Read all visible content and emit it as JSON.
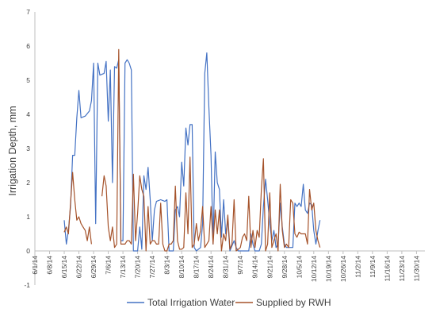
{
  "chart_data": {
    "type": "line",
    "title": "",
    "xlabel": "",
    "ylabel": "Irrigation Depth, mm",
    "ylim": [
      -1,
      7
    ],
    "yticks": [
      "-1",
      "0",
      "1",
      "2",
      "3",
      "4",
      "5",
      "6",
      "7"
    ],
    "x_range": [
      "2014-06-01",
      "2014-12-04"
    ],
    "x_ticks": [
      "6/1/14",
      "6/8/14",
      "6/15/14",
      "6/22/14",
      "6/29/14",
      "7/6/14",
      "7/13/14",
      "7/20/14",
      "7/27/14",
      "8/3/14",
      "8/10/14",
      "8/17/14",
      "8/24/14",
      "8/31/14",
      "9/7/14",
      "9/14/14",
      "9/21/14",
      "9/28/14",
      "10/5/14",
      "10/12/14",
      "10/19/14",
      "10/26/14",
      "11/2/14",
      "11/9/14",
      "11/16/14",
      "11/23/14",
      "11/30/14"
    ],
    "grid": false,
    "legend_position": "bottom",
    "series": [
      {
        "name": "Total Irrigation Water",
        "color": "#4472c4",
        "points": [
          [
            "2014-06-15",
            0.9
          ],
          [
            "2014-06-16",
            0.2
          ],
          [
            "2014-06-17",
            0.6
          ],
          [
            "2014-06-18",
            1.3
          ],
          [
            "2014-06-19",
            2.8
          ],
          [
            "2014-06-20",
            2.8
          ],
          [
            "2014-06-21",
            3.9
          ],
          [
            "2014-06-22",
            4.7
          ],
          [
            "2014-06-23",
            3.9
          ],
          [
            "2014-06-25",
            3.95
          ],
          [
            "2014-06-27",
            4.1
          ],
          [
            "2014-06-28",
            4.4
          ],
          [
            "2014-06-29",
            5.5
          ],
          [
            "2014-06-30",
            0.8
          ],
          [
            "2014-07-01",
            5.5
          ],
          [
            "2014-07-02",
            5.15
          ],
          [
            "2014-07-04",
            5.2
          ],
          [
            "2014-07-05",
            5.55
          ],
          [
            "2014-07-06",
            3.8
          ],
          [
            "2014-07-07",
            5.3
          ],
          [
            "2014-07-08",
            2.0
          ],
          [
            "2014-07-09",
            5.4
          ],
          [
            "2014-07-10",
            5.35
          ],
          [
            "2014-07-11",
            5.6
          ],
          [
            "2014-07-12",
            0.3
          ],
          [
            "2014-07-13",
            0.3
          ],
          [
            "2014-07-14",
            5.5
          ],
          [
            "2014-07-15",
            5.6
          ],
          [
            "2014-07-16",
            5.5
          ],
          [
            "2014-07-17",
            5.3
          ],
          [
            "2014-07-18",
            0.0
          ],
          [
            "2014-07-20",
            0.0
          ],
          [
            "2014-07-21",
            0.7
          ],
          [
            "2014-07-22",
            0.05
          ],
          [
            "2014-07-23",
            2.2
          ],
          [
            "2014-07-24",
            1.8
          ],
          [
            "2014-07-25",
            2.45
          ],
          [
            "2014-07-26",
            1.5
          ],
          [
            "2014-07-27",
            0.3
          ],
          [
            "2014-07-28",
            1.2
          ],
          [
            "2014-07-29",
            1.45
          ],
          [
            "2014-07-31",
            1.5
          ],
          [
            "2014-08-02",
            1.45
          ],
          [
            "2014-08-03",
            1.5
          ],
          [
            "2014-08-04",
            0.0
          ],
          [
            "2014-08-06",
            0.0
          ],
          [
            "2014-08-07",
            1.2
          ],
          [
            "2014-08-08",
            1.3
          ],
          [
            "2014-08-09",
            1.0
          ],
          [
            "2014-08-10",
            2.6
          ],
          [
            "2014-08-11",
            1.9
          ],
          [
            "2014-08-12",
            3.6
          ],
          [
            "2014-08-13",
            3.1
          ],
          [
            "2014-08-14",
            3.7
          ],
          [
            "2014-08-15",
            3.7
          ],
          [
            "2014-08-16",
            0.1
          ],
          [
            "2014-08-17",
            0.0
          ],
          [
            "2014-08-19",
            0.1
          ],
          [
            "2014-08-20",
            0.8
          ],
          [
            "2014-08-21",
            5.2
          ],
          [
            "2014-08-22",
            5.8
          ],
          [
            "2014-08-23",
            4.2
          ],
          [
            "2014-08-24",
            2.8
          ],
          [
            "2014-08-25",
            0.2
          ],
          [
            "2014-08-26",
            2.9
          ],
          [
            "2014-08-27",
            2.0
          ],
          [
            "2014-08-28",
            1.8
          ],
          [
            "2014-08-29",
            0.4
          ],
          [
            "2014-08-30",
            1.5
          ],
          [
            "2014-08-31",
            0.5
          ],
          [
            "2014-09-01",
            0.9
          ],
          [
            "2014-09-02",
            0.0
          ],
          [
            "2014-09-04",
            0.3
          ],
          [
            "2014-09-05",
            0.1
          ],
          [
            "2014-09-06",
            0.0
          ],
          [
            "2014-09-08",
            0.0
          ],
          [
            "2014-09-10",
            0.0
          ],
          [
            "2014-09-11",
            0.0
          ],
          [
            "2014-09-12",
            0.5
          ],
          [
            "2014-09-13",
            0.2
          ],
          [
            "2014-09-14",
            0.0
          ],
          [
            "2014-09-16",
            0.0
          ],
          [
            "2014-09-17",
            0.2
          ],
          [
            "2014-09-18",
            1.3
          ],
          [
            "2014-09-19",
            2.1
          ],
          [
            "2014-09-20",
            1.5
          ],
          [
            "2014-09-21",
            0.8
          ],
          [
            "2014-09-22",
            0.3
          ],
          [
            "2014-09-23",
            0.6
          ],
          [
            "2014-09-24",
            0.1
          ],
          [
            "2014-09-25",
            0.2
          ],
          [
            "2014-09-26",
            1.4
          ],
          [
            "2014-09-27",
            0.7
          ],
          [
            "2014-09-28",
            0.2
          ],
          [
            "2014-09-29",
            0.1
          ],
          [
            "2014-09-30",
            0.1
          ],
          [
            "2014-10-02",
            0.1
          ],
          [
            "2014-10-03",
            1.4
          ],
          [
            "2014-10-04",
            1.3
          ],
          [
            "2014-10-05",
            1.4
          ],
          [
            "2014-10-06",
            1.3
          ],
          [
            "2014-10-07",
            1.95
          ],
          [
            "2014-10-08",
            1.2
          ],
          [
            "2014-10-09",
            1.1
          ],
          [
            "2014-10-10",
            1.4
          ],
          [
            "2014-10-11",
            1.35
          ],
          [
            "2014-10-12",
            0.6
          ],
          [
            "2014-10-13",
            0.2
          ],
          [
            "2014-10-14",
            0.6
          ],
          [
            "2014-10-15",
            0.9
          ]
        ]
      },
      {
        "name": "Supplied by RWH",
        "color": "#a5522a",
        "points": [
          [
            "2014-06-15",
            0.55
          ],
          [
            "2014-06-16",
            0.7
          ],
          [
            "2014-06-17",
            0.5
          ],
          [
            "2014-06-18",
            1.4
          ],
          [
            "2014-06-19",
            2.3
          ],
          [
            "2014-06-20",
            1.5
          ],
          [
            "2014-06-21",
            0.9
          ],
          [
            "2014-06-22",
            1.0
          ],
          [
            "2014-06-23",
            0.8
          ],
          [
            "2014-06-24",
            0.7
          ],
          [
            "2014-06-25",
            0.6
          ],
          [
            "2014-06-26",
            0.3
          ],
          [
            "2014-06-27",
            0.7
          ],
          [
            "2014-06-28",
            0.2
          ],
          [
            "2014-06-29",
            null
          ],
          [
            "2014-07-03",
            1.6
          ],
          [
            "2014-07-04",
            2.2
          ],
          [
            "2014-07-05",
            1.9
          ],
          [
            "2014-07-06",
            0.7
          ],
          [
            "2014-07-07",
            0.3
          ],
          [
            "2014-07-08",
            0.7
          ],
          [
            "2014-07-09",
            0.1
          ],
          [
            "2014-07-10",
            0.2
          ],
          [
            "2014-07-11",
            5.9
          ],
          [
            "2014-07-12",
            0.2
          ],
          [
            "2014-07-13",
            0.2
          ],
          [
            "2014-07-14",
            0.2
          ],
          [
            "2014-07-15",
            0.3
          ],
          [
            "2014-07-16",
            0.3
          ],
          [
            "2014-07-17",
            0.2
          ],
          [
            "2014-07-18",
            2.25
          ],
          [
            "2014-07-19",
            0.3
          ],
          [
            "2014-07-20",
            1.1
          ],
          [
            "2014-07-21",
            2.2
          ],
          [
            "2014-07-22",
            1.8
          ],
          [
            "2014-07-23",
            1.6
          ],
          [
            "2014-07-24",
            0.0
          ],
          [
            "2014-07-25",
            1.3
          ],
          [
            "2014-07-26",
            0.2
          ],
          [
            "2014-07-27",
            0.3
          ],
          [
            "2014-07-28",
            0.3
          ],
          [
            "2014-07-29",
            0.2
          ],
          [
            "2014-07-30",
            0.2
          ],
          [
            "2014-07-31",
            1.4
          ],
          [
            "2014-08-01",
            0.2
          ],
          [
            "2014-08-02",
            0.0
          ],
          [
            "2014-08-03",
            0.0
          ],
          [
            "2014-08-04",
            0.2
          ],
          [
            "2014-08-05",
            0.2
          ],
          [
            "2014-08-06",
            0.3
          ],
          [
            "2014-08-07",
            1.9
          ],
          [
            "2014-08-08",
            0.3
          ],
          [
            "2014-08-09",
            0.05
          ],
          [
            "2014-08-10",
            0.05
          ],
          [
            "2014-08-11",
            0.1
          ],
          [
            "2014-08-12",
            1.7
          ],
          [
            "2014-08-13",
            0.5
          ],
          [
            "2014-08-14",
            2.75
          ],
          [
            "2014-08-15",
            0.1
          ],
          [
            "2014-08-16",
            0.2
          ],
          [
            "2014-08-17",
            0.8
          ],
          [
            "2014-08-18",
            0.3
          ],
          [
            "2014-08-19",
            0.6
          ],
          [
            "2014-08-20",
            1.3
          ],
          [
            "2014-08-21",
            0.1
          ],
          [
            "2014-08-22",
            0.2
          ],
          [
            "2014-08-23",
            0.3
          ],
          [
            "2014-08-24",
            1.3
          ],
          [
            "2014-08-25",
            0.2
          ],
          [
            "2014-08-26",
            1.2
          ],
          [
            "2014-08-27",
            0.5
          ],
          [
            "2014-08-28",
            1.2
          ],
          [
            "2014-08-29",
            0.0
          ],
          [
            "2014-08-30",
            0.5
          ],
          [
            "2014-08-31",
            0.3
          ],
          [
            "2014-09-01",
            1.05
          ],
          [
            "2014-09-02",
            0.05
          ],
          [
            "2014-09-03",
            0.2
          ],
          [
            "2014-09-04",
            1.5
          ],
          [
            "2014-09-05",
            0.0
          ],
          [
            "2014-09-06",
            0.05
          ],
          [
            "2014-09-07",
            0.1
          ],
          [
            "2014-09-08",
            0.4
          ],
          [
            "2014-09-09",
            0.5
          ],
          [
            "2014-09-10",
            0.3
          ],
          [
            "2014-09-11",
            1.6
          ],
          [
            "2014-09-12",
            0.1
          ],
          [
            "2014-09-13",
            0.6
          ],
          [
            "2014-09-14",
            0.1
          ],
          [
            "2014-09-15",
            0.6
          ],
          [
            "2014-09-16",
            0.4
          ],
          [
            "2014-09-17",
            1.8
          ],
          [
            "2014-09-18",
            2.7
          ],
          [
            "2014-09-19",
            0.0
          ],
          [
            "2014-09-20",
            0.2
          ],
          [
            "2014-09-21",
            1.7
          ],
          [
            "2014-09-22",
            0.1
          ],
          [
            "2014-09-23",
            0.3
          ],
          [
            "2014-09-24",
            0.5
          ],
          [
            "2014-09-25",
            0.0
          ],
          [
            "2014-09-26",
            1.95
          ],
          [
            "2014-09-27",
            0.6
          ],
          [
            "2014-09-28",
            0.1
          ],
          [
            "2014-09-29",
            0.2
          ],
          [
            "2014-09-30",
            0.1
          ],
          [
            "2014-10-01",
            1.5
          ],
          [
            "2014-10-02",
            1.4
          ],
          [
            "2014-10-03",
            0.5
          ],
          [
            "2014-10-04",
            0.4
          ],
          [
            "2014-10-05",
            0.55
          ],
          [
            "2014-10-06",
            0.5
          ],
          [
            "2014-10-07",
            0.5
          ],
          [
            "2014-10-08",
            0.5
          ],
          [
            "2014-10-09",
            0.2
          ],
          [
            "2014-10-10",
            1.8
          ],
          [
            "2014-10-11",
            1.2
          ],
          [
            "2014-10-12",
            1.4
          ],
          [
            "2014-10-13",
            0.6
          ],
          [
            "2014-10-14",
            0.3
          ],
          [
            "2014-10-15",
            0.1
          ]
        ]
      }
    ]
  }
}
